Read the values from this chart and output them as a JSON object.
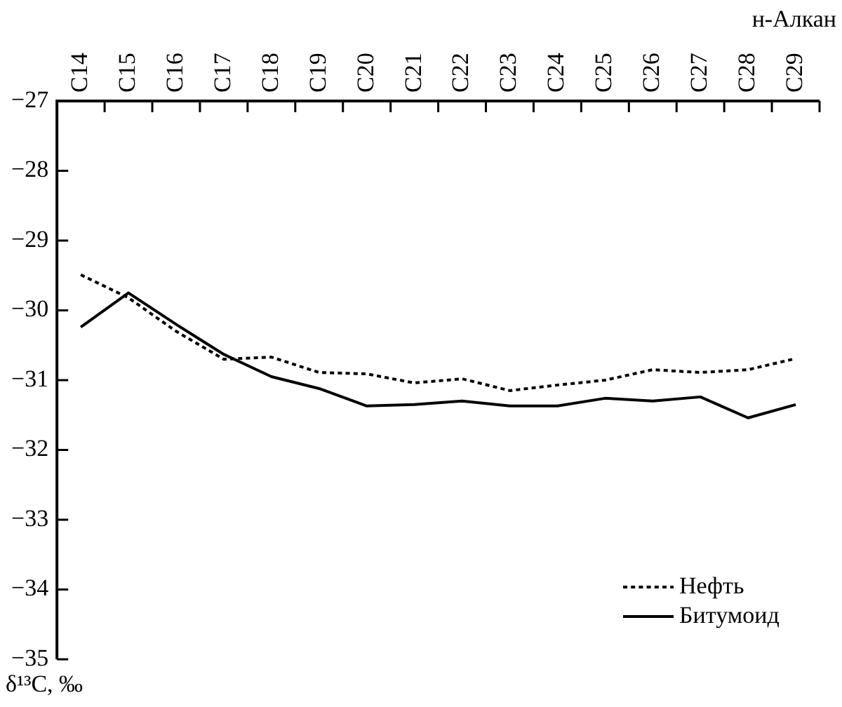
{
  "chart_data": {
    "type": "line",
    "xlabel": "н-Алкан",
    "ylabel": "δ¹³C, ‰",
    "categories": [
      "C14",
      "C15",
      "C16",
      "C17",
      "C18",
      "C19",
      "C20",
      "C21",
      "C22",
      "C23",
      "C24",
      "C25",
      "C26",
      "C27",
      "C28",
      "C29"
    ],
    "series": [
      {
        "name": "Нефть",
        "color": "#000000",
        "line_style": "dotted",
        "values": [
          -29.49,
          -29.82,
          -30.3,
          -30.7,
          -30.67,
          -30.89,
          -30.91,
          -31.04,
          -30.98,
          -31.15,
          -31.07,
          -31.0,
          -30.85,
          -30.89,
          -30.85,
          -30.69
        ]
      },
      {
        "name": "Битумоид",
        "color": "#000000",
        "line_style": "solid",
        "values": [
          -30.24,
          -29.75,
          -30.2,
          -30.63,
          -30.95,
          -31.12,
          -31.37,
          -31.35,
          -31.3,
          -31.37,
          -31.37,
          -31.26,
          -31.3,
          -31.24,
          -31.54,
          -31.35
        ]
      }
    ],
    "ylim": [
      -35,
      -27
    ],
    "yticks": [
      -35,
      -34,
      -33,
      -32,
      -31,
      -30,
      -29,
      -28,
      -27
    ],
    "grid": false,
    "legend": "bottom right",
    "marker": "none"
  }
}
